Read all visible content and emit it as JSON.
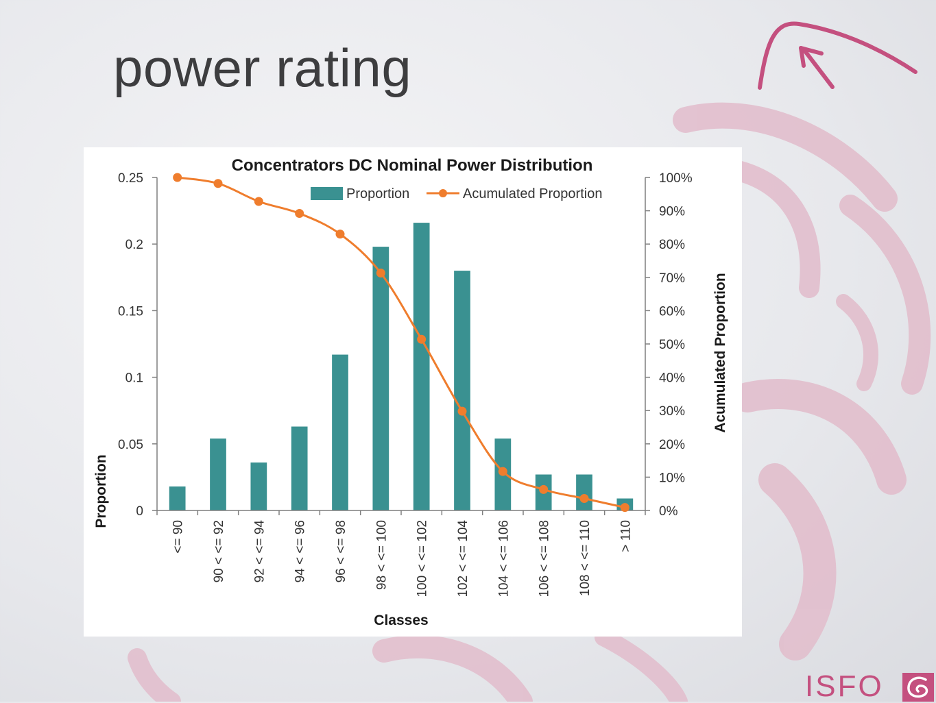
{
  "slide": {
    "title": "power rating",
    "logo_text": "ISFO",
    "accent_color": "#c4507f",
    "background_motif": "pink swirl"
  },
  "chart_data": {
    "type": "bar",
    "title": "Concentrators DC Nominal Power Distribution",
    "xlabel": "Classes",
    "ylabel": "Proportion",
    "y2label": "Acumulated Proportion",
    "categories": [
      "<= 90",
      "90 < <= 92",
      "92 < <= 94",
      "94 < <= 96",
      "96 < <= 98",
      "98 < <= 100",
      "100 < <= 102",
      "102 < <= 104",
      "104 < <= 106",
      "106 < <= 108",
      "108 < <= 110",
      "> 110"
    ],
    "ylim": [
      0,
      0.25
    ],
    "yticks": [
      "0",
      "0.05",
      "0.1",
      "0.15",
      "0.2",
      "0.25"
    ],
    "y2lim": [
      0,
      100
    ],
    "y2ticks": [
      "0%",
      "10%",
      "20%",
      "30%",
      "40%",
      "50%",
      "60%",
      "70%",
      "80%",
      "90%",
      "100%"
    ],
    "legend_position": "top-right",
    "grid": false,
    "series": [
      {
        "name": "Proportion",
        "type": "bar",
        "axis": "left",
        "color": "#3a9191",
        "values": [
          0.018,
          0.054,
          0.036,
          0.063,
          0.117,
          0.198,
          0.216,
          0.18,
          0.054,
          0.027,
          0.027,
          0.009
        ]
      },
      {
        "name": "Acumulated Proportion",
        "type": "line",
        "axis": "right",
        "color": "#ef7d2d",
        "values": [
          100,
          98.2,
          92.8,
          89.2,
          83.0,
          71.3,
          51.4,
          29.8,
          11.7,
          6.3,
          3.6,
          0.9
        ]
      }
    ]
  }
}
